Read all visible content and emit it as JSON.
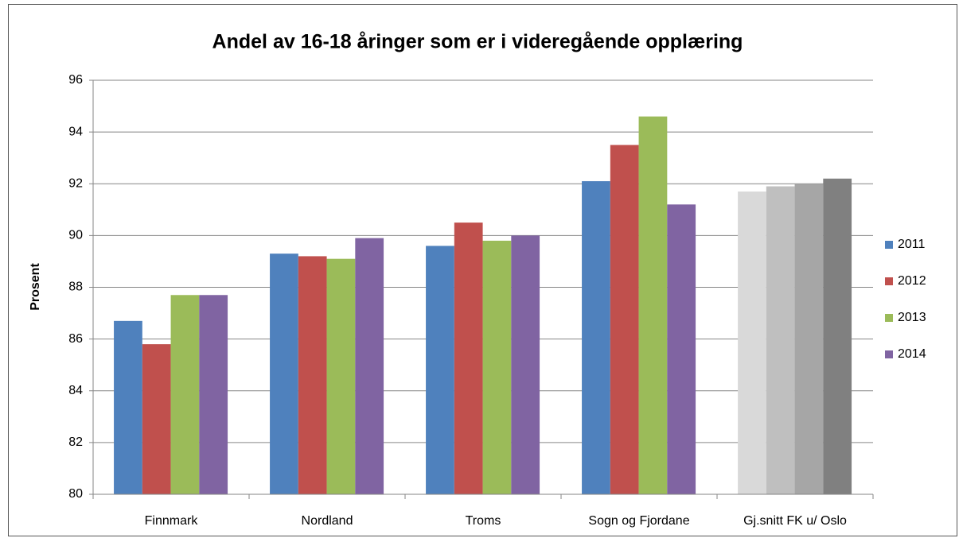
{
  "chart_data": {
    "type": "bar",
    "title": "Andel av 16-18 åringer som er i videregående opplæring",
    "y_label": "Prosent",
    "categories": [
      "Finnmark",
      "Nordland",
      "Troms",
      "Sogn og Fjordane",
      "Gj.snitt FK u/ Oslo"
    ],
    "series": [
      {
        "name": "2011",
        "color": "#4f81bd",
        "values": [
          86.7,
          89.3,
          89.6,
          92.1,
          91.7
        ],
        "colors": [
          "#4f81bd",
          "#4f81bd",
          "#4f81bd",
          "#4f81bd",
          "#d9d9d9"
        ]
      },
      {
        "name": "2012",
        "color": "#c0504d",
        "values": [
          85.8,
          89.2,
          90.5,
          93.5,
          91.9
        ],
        "colors": [
          "#c0504d",
          "#c0504d",
          "#c0504d",
          "#c0504d",
          "#bfbfbf"
        ]
      },
      {
        "name": "2013",
        "color": "#9bbb59",
        "values": [
          87.7,
          89.1,
          89.8,
          94.6,
          92.0
        ],
        "colors": [
          "#9bbb59",
          "#9bbb59",
          "#9bbb59",
          "#9bbb59",
          "#a6a6a6"
        ]
      },
      {
        "name": "2014",
        "color": "#8064a2",
        "values": [
          87.7,
          89.9,
          90.0,
          91.2,
          92.2
        ],
        "colors": [
          "#8064a2",
          "#8064a2",
          "#8064a2",
          "#8064a2",
          "#808080"
        ]
      }
    ],
    "ylim": [
      80,
      96
    ],
    "yticks": [
      80,
      82,
      84,
      86,
      88,
      90,
      92,
      94,
      96
    ],
    "grid": true,
    "legend": "right"
  }
}
